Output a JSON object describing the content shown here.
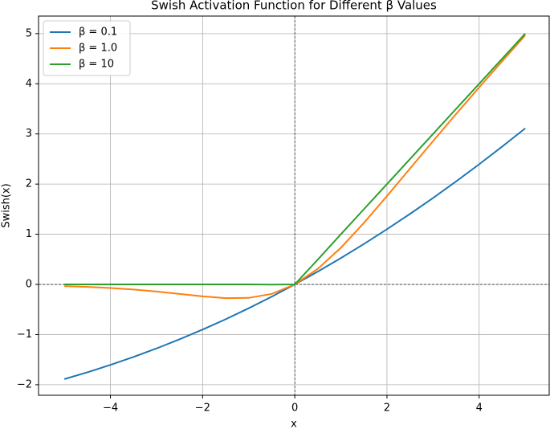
{
  "chart_data": {
    "type": "line",
    "title": "Swish Activation Function for Different β Values",
    "x_label": "x",
    "y_label": "Swish(x)",
    "x": [
      -5,
      -4.5,
      -4,
      -3.5,
      -3,
      -2.5,
      -2,
      -1.5,
      -1,
      -0.5,
      0,
      0.5,
      1,
      1.5,
      2,
      2.5,
      3,
      3.5,
      4,
      4.5,
      5
    ],
    "series": [
      {
        "name": "β = 0.1",
        "color": "#1f77b4",
        "values": [
          -1.888,
          -1.752,
          -1.605,
          -1.447,
          -1.277,
          -1.094,
          -0.9,
          -0.694,
          -0.475,
          -0.244,
          0,
          0.256,
          0.525,
          0.806,
          1.1,
          1.406,
          1.723,
          2.053,
          2.395,
          2.748,
          3.112
        ]
      },
      {
        "name": "β = 1.0",
        "color": "#ff7f0e",
        "values": [
          -0.0335,
          -0.0495,
          -0.0719,
          -0.1026,
          -0.1423,
          -0.1897,
          -0.2384,
          -0.2736,
          -0.2689,
          -0.1888,
          0,
          0.3112,
          0.7311,
          1.2264,
          1.7616,
          2.3103,
          2.8577,
          3.3974,
          3.9281,
          4.4505,
          4.9665
        ]
      },
      {
        "name": "β = 10",
        "color": "#2ca02c",
        "values": [
          0,
          0,
          0,
          0,
          0,
          0,
          0,
          0,
          0,
          -0.0033,
          0,
          0.4967,
          1.0,
          1.5,
          2.0,
          2.5,
          3.0,
          3.5,
          4.0,
          4.5,
          5.0
        ]
      }
    ],
    "xlim": [
      -5.56,
      5.52
    ],
    "ylim": [
      -2.21,
      5.35
    ],
    "xticks": [
      {
        "value": -4,
        "label": "−4"
      },
      {
        "value": -2,
        "label": "−2"
      },
      0,
      2,
      4
    ],
    "yticks": [
      {
        "value": -2,
        "label": "−2"
      },
      {
        "value": -1,
        "label": "−1"
      },
      0,
      1,
      2,
      3,
      4,
      5
    ],
    "reference_lines": {
      "x": 0,
      "y": 0
    },
    "grid": true,
    "legend": "upper-left"
  }
}
